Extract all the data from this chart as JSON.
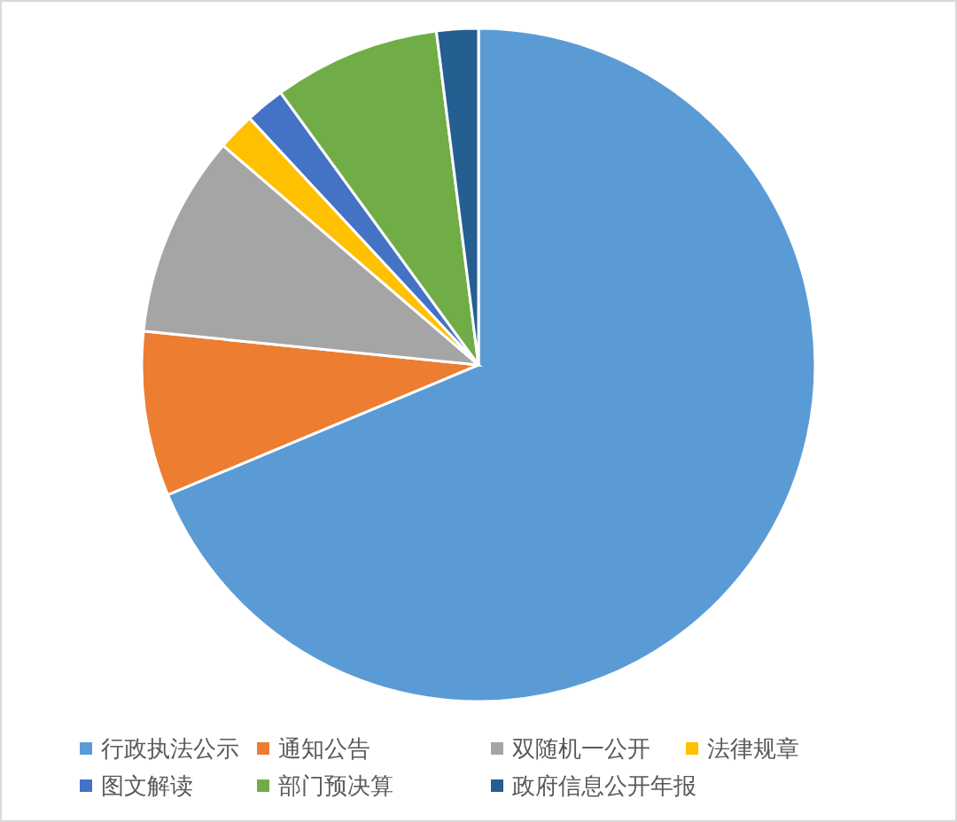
{
  "chart_data": {
    "type": "pie",
    "categories": [
      "行政执法公示",
      "通知公告",
      "双随机一公开",
      "法律规章",
      "图文解读",
      "部门预决算",
      "政府信息公开年报"
    ],
    "values": [
      68.7,
      7.9,
      9.7,
      1.8,
      1.9,
      8.0,
      2.0
    ],
    "colors": [
      "#5b9bd5",
      "#ed7d31",
      "#a5a5a5",
      "#ffc000",
      "#4472c4",
      "#70ad47",
      "#255e91"
    ],
    "legend": "bottom"
  }
}
